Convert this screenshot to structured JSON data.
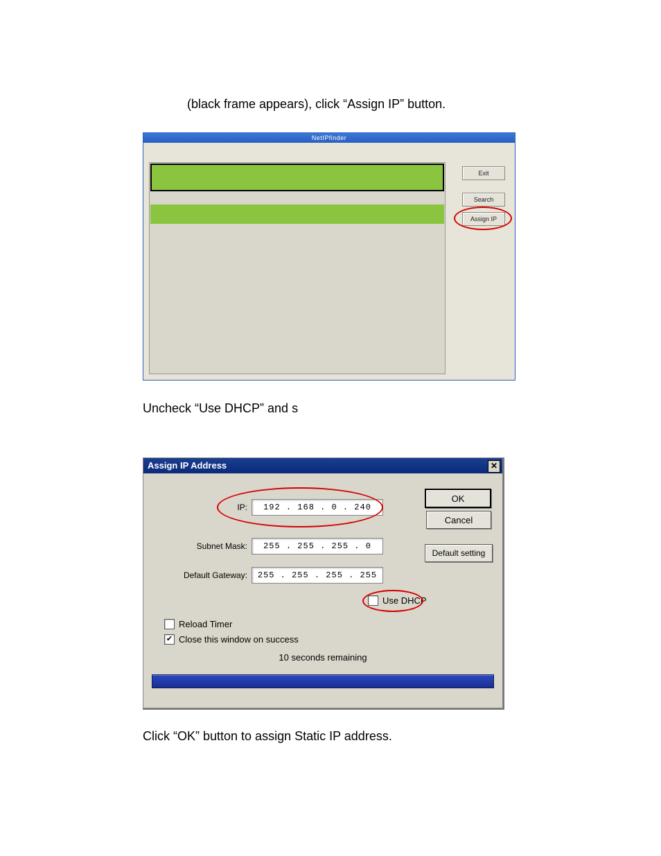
{
  "instructions": {
    "line1": "(black frame appears), click “Assign IP” button.",
    "line2": "Uncheck “Use DHCP” and s",
    "line3": "Click “OK” button to assign Static IP address."
  },
  "win1": {
    "title": "NetIPfinder",
    "buttons": {
      "exit": "Exit",
      "search": "Search",
      "assign": "Assign IP"
    },
    "row_color": "#8bc53f",
    "bg_color": "#d9d6cb",
    "titlebar_gradient": [
      "#3b78d8",
      "#2a5fbd"
    ],
    "highlight_border": "#000000",
    "circle_color": "#d40000"
  },
  "win2": {
    "title": "Assign IP Address",
    "close": "✕",
    "labels": {
      "ip": "IP:",
      "mask": "Subnet Mask:",
      "gw": "Default Gateway:"
    },
    "values": {
      "ip": "192 . 168 .  0  . 240",
      "mask": "255 . 255 . 255 .  0",
      "gw": "255 . 255 . 255 . 255"
    },
    "checks": {
      "use_dhcp": {
        "label": "Use DHCP",
        "checked": false
      },
      "reload": {
        "label": "Reload Timer",
        "checked": false
      },
      "close_win": {
        "label": "Close this window on success",
        "checked": true
      }
    },
    "countdown": "10 seconds remaining",
    "buttons": {
      "ok": "OK",
      "cancel": "Cancel",
      "default": "Default setting"
    },
    "bg_color": "#d9d6cb",
    "titlebar_gradient": [
      "#1b3e8e",
      "#0a2a7a"
    ],
    "circle_color": "#d40000",
    "progress_gradient": [
      "#2a47c0",
      "#1a2f90"
    ]
  }
}
